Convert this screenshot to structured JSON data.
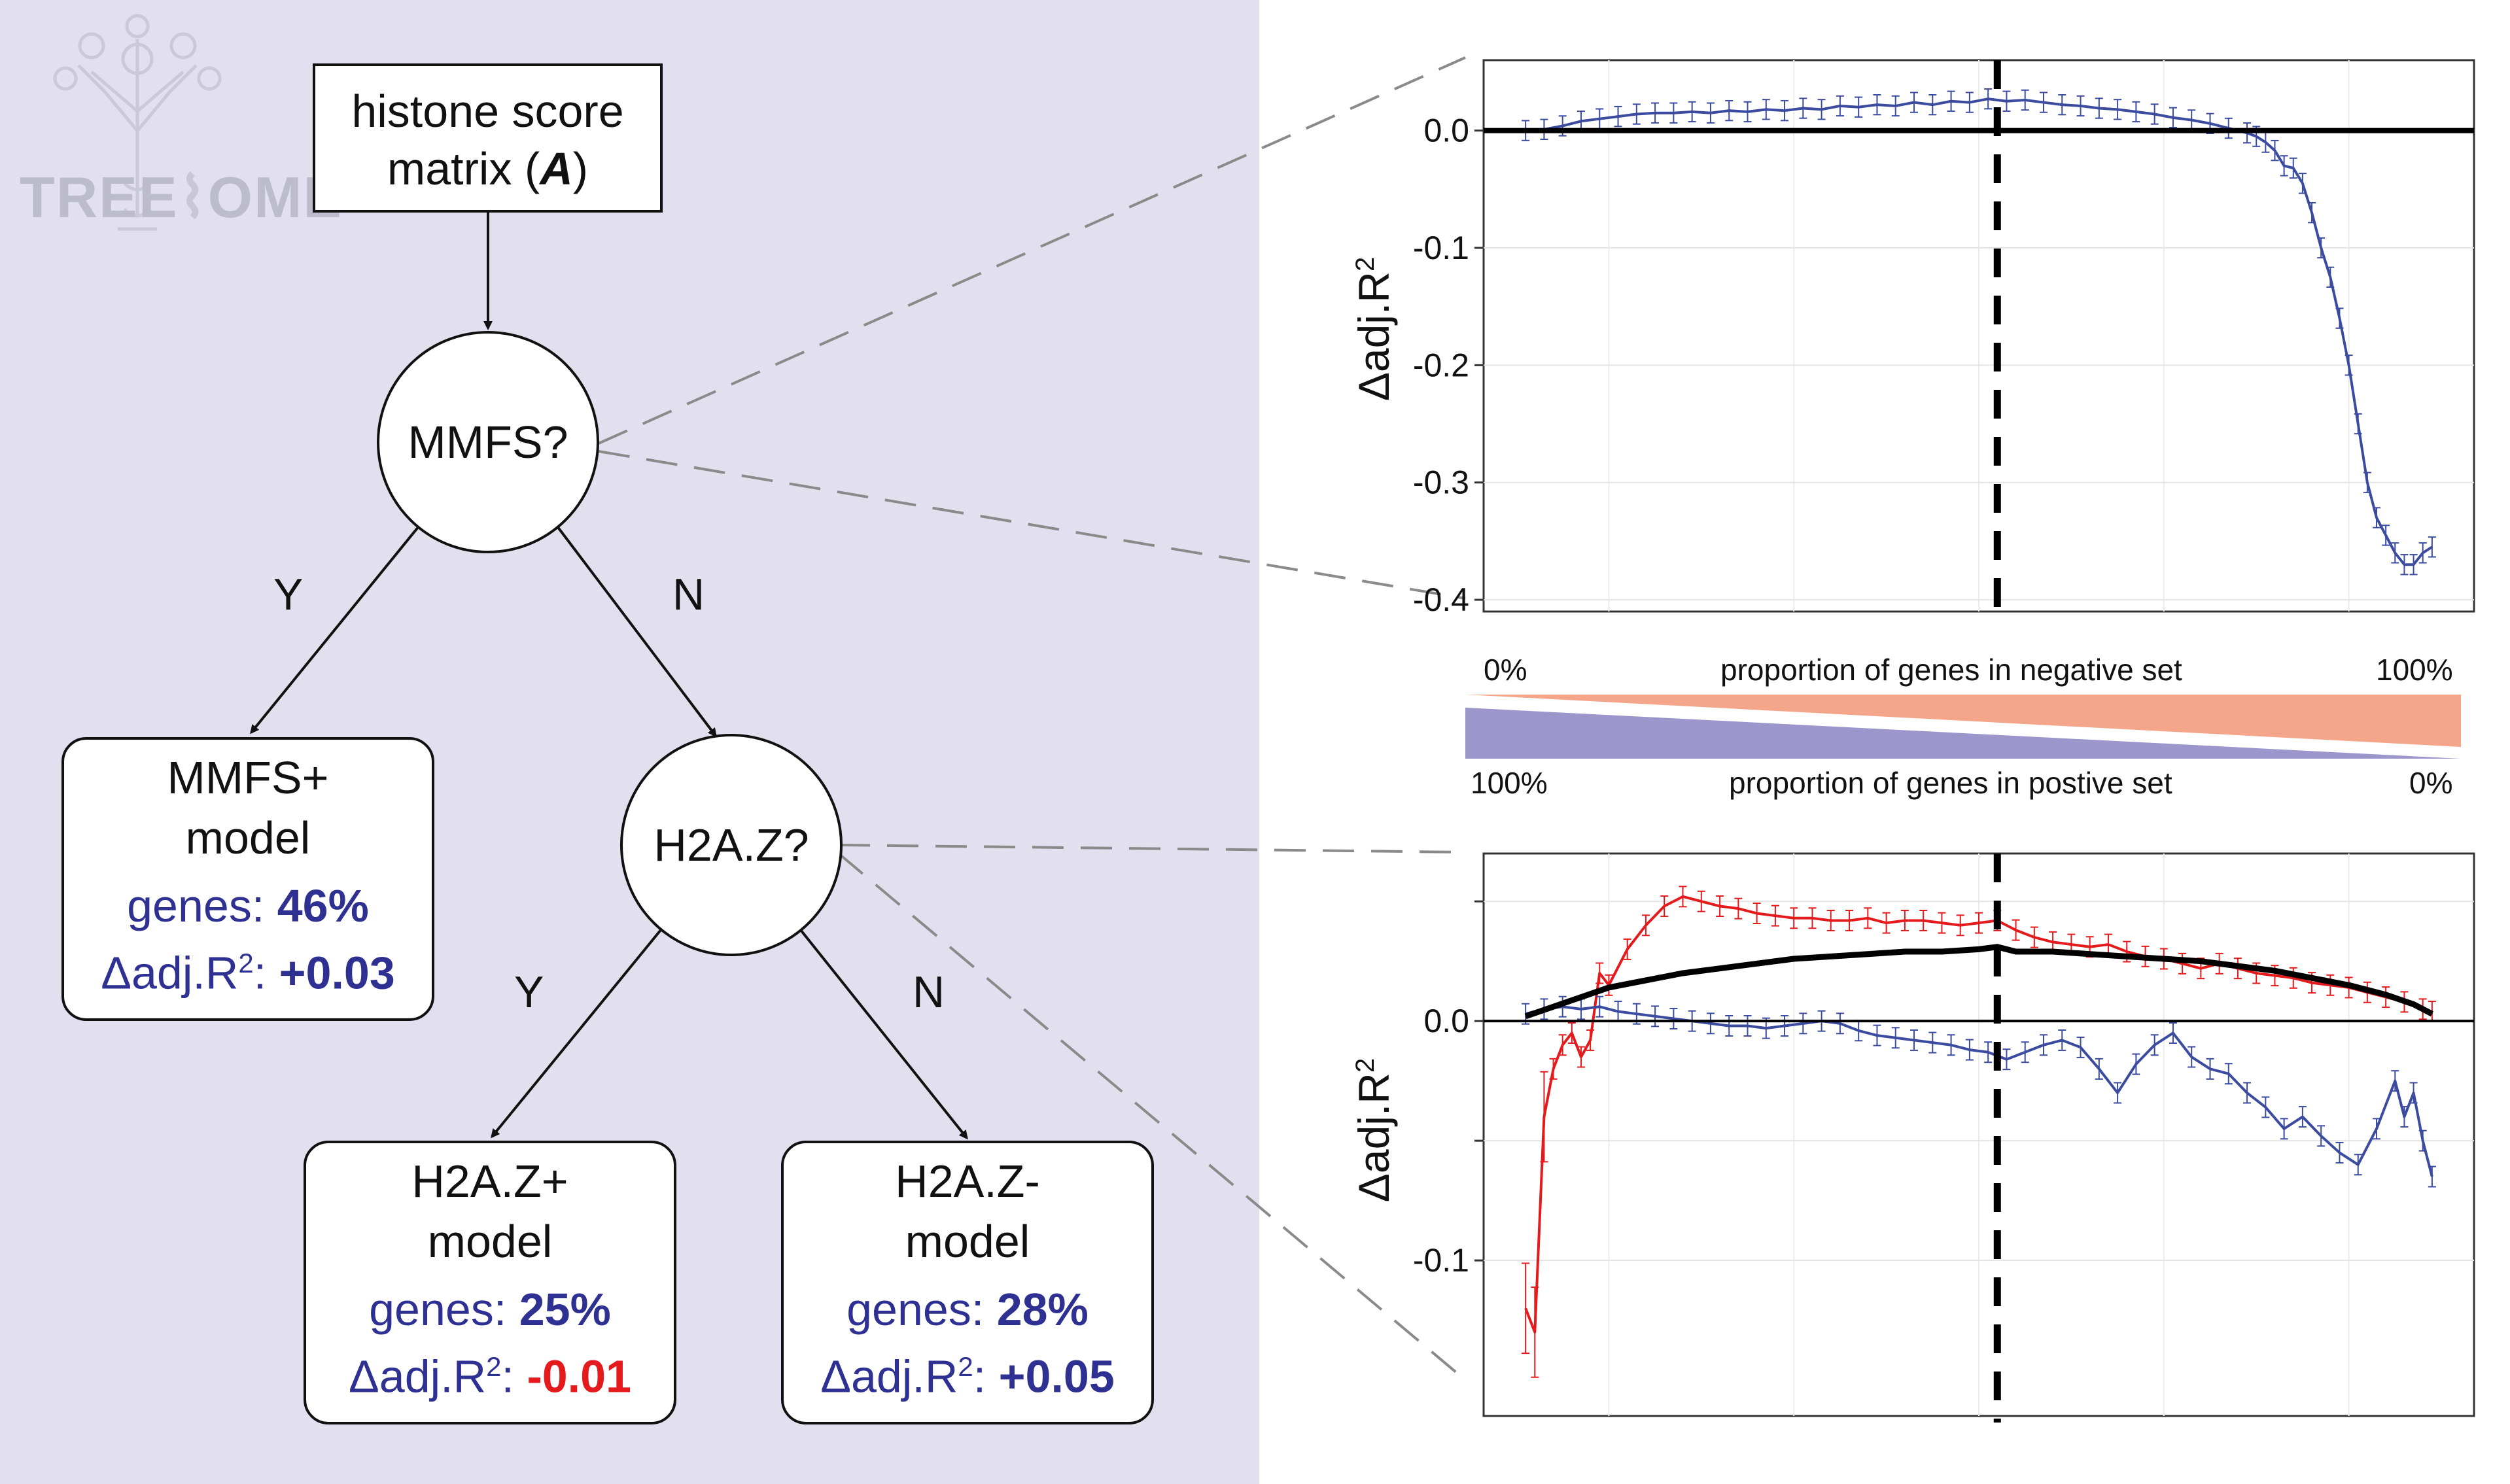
{
  "logo": {
    "text": "TREE",
    "text2": "OME"
  },
  "flow": {
    "root": {
      "line1": "histone score",
      "line2_prefix": "matrix (",
      "line2_var": "A",
      "line2_suffix": ")"
    },
    "node1": "MMFS?",
    "node2": "H2A.Z?",
    "edge_y1": "Y",
    "edge_n1": "N",
    "edge_y2": "Y",
    "edge_n2": "N",
    "model1": {
      "line1": "MMFS+",
      "line2": "model",
      "genes_label": "genes:",
      "genes_value": "46%",
      "delta_label": "Δadj.R",
      "delta_sup": "2",
      "delta_colon": ":",
      "delta_value": "+0.03"
    },
    "model2": {
      "line1": "H2A.Z+",
      "line2": "model",
      "genes_label": "genes:",
      "genes_value": "25%",
      "delta_label": "Δadj.R",
      "delta_sup": "2",
      "delta_colon": ":",
      "delta_value": "-0.01"
    },
    "model3": {
      "line1": "H2A.Z-",
      "line2": "model",
      "genes_label": "genes:",
      "genes_value": "28%",
      "delta_label": "Δadj.R",
      "delta_sup": "2",
      "delta_colon": ":",
      "delta_value": "+0.05"
    }
  },
  "scale": {
    "neg_left": "0%",
    "neg_label": "proportion of genes in negative set",
    "neg_right": "100%",
    "pos_left": "100%",
    "pos_label": "proportion of genes in postive set",
    "pos_right": "0%",
    "neg_color": "#f4a58a",
    "pos_color": "#9b96cc"
  },
  "colors": {
    "blue": "#3b4ba0",
    "red": "#e41a1c",
    "black": "#000000",
    "panel": "#e2e0ee"
  },
  "chart_data": [
    {
      "type": "line",
      "title": "",
      "ylabel": "Δadj.R",
      "ylabel_sup": "2",
      "ylim": [
        -0.41,
        0.06
      ],
      "xlim": [
        0,
        100
      ],
      "yticks": [
        {
          "value": 0.0,
          "label": "0.0"
        },
        {
          "value": -0.1,
          "label": "-0.1"
        },
        {
          "value": -0.2,
          "label": "-0.2"
        },
        {
          "value": -0.3,
          "label": "-0.3"
        },
        {
          "value": -0.4,
          "label": "-0.4"
        }
      ],
      "hline": 0.0,
      "vline": 52,
      "series": [
        {
          "name": "blue",
          "x": [
            1,
            3,
            5,
            7,
            9,
            11,
            13,
            15,
            17,
            19,
            21,
            23,
            25,
            27,
            29,
            31,
            33,
            35,
            37,
            39,
            41,
            43,
            45,
            47,
            49,
            51,
            53,
            55,
            57,
            59,
            61,
            63,
            65,
            67,
            69,
            71,
            73,
            75,
            77,
            79,
            80,
            81,
            82,
            83,
            84,
            85,
            86,
            87,
            88,
            89,
            90,
            91,
            92,
            93,
            94,
            95,
            96,
            97,
            98,
            99
          ],
          "y": [
            0.0,
            0.001,
            0.004,
            0.008,
            0.01,
            0.012,
            0.014,
            0.015,
            0.015,
            0.016,
            0.015,
            0.017,
            0.016,
            0.018,
            0.017,
            0.019,
            0.018,
            0.021,
            0.02,
            0.022,
            0.021,
            0.024,
            0.022,
            0.025,
            0.024,
            0.027,
            0.025,
            0.026,
            0.024,
            0.022,
            0.021,
            0.019,
            0.018,
            0.016,
            0.014,
            0.011,
            0.009,
            0.006,
            0.002,
            -0.002,
            -0.005,
            -0.01,
            -0.017,
            -0.03,
            -0.032,
            -0.045,
            -0.07,
            -0.1,
            -0.125,
            -0.16,
            -0.2,
            -0.25,
            -0.3,
            -0.33,
            -0.345,
            -0.36,
            -0.37,
            -0.37,
            -0.36,
            -0.355
          ],
          "color": "#3b4ba0"
        }
      ]
    },
    {
      "type": "line",
      "title": "",
      "ylabel": "Δadj.R",
      "ylabel_sup": "2",
      "ylim": [
        -0.165,
        0.07
      ],
      "xlim": [
        0,
        100
      ],
      "yticks": [
        {
          "value": 0.05,
          "label": ""
        },
        {
          "value": 0.0,
          "label": "0.0"
        },
        {
          "value": -0.05,
          "label": ""
        },
        {
          "value": -0.1,
          "label": "-0.1"
        }
      ],
      "hline": 0.0,
      "vline": 52,
      "series": [
        {
          "name": "red",
          "x": [
            1,
            2,
            3,
            4,
            5,
            6,
            7,
            8,
            9,
            10,
            12,
            14,
            16,
            18,
            20,
            22,
            24,
            26,
            28,
            30,
            32,
            34,
            36,
            38,
            40,
            42,
            44,
            46,
            48,
            50,
            52,
            54,
            56,
            58,
            60,
            62,
            64,
            66,
            68,
            70,
            72,
            74,
            76,
            78,
            80,
            82,
            84,
            86,
            88,
            90,
            92,
            94,
            96,
            98,
            99
          ],
          "y": [
            -0.12,
            -0.13,
            -0.04,
            -0.02,
            -0.01,
            -0.005,
            -0.015,
            -0.008,
            0.02,
            0.015,
            0.03,
            0.04,
            0.048,
            0.052,
            0.05,
            0.048,
            0.047,
            0.045,
            0.044,
            0.043,
            0.043,
            0.042,
            0.042,
            0.043,
            0.041,
            0.042,
            0.042,
            0.041,
            0.04,
            0.041,
            0.042,
            0.038,
            0.035,
            0.033,
            0.032,
            0.031,
            0.032,
            0.029,
            0.027,
            0.026,
            0.024,
            0.022,
            0.024,
            0.022,
            0.02,
            0.019,
            0.018,
            0.016,
            0.015,
            0.014,
            0.012,
            0.01,
            0.008,
            0.005,
            0.004
          ],
          "color": "#e41a1c"
        },
        {
          "name": "blue",
          "x": [
            1,
            3,
            5,
            7,
            9,
            11,
            13,
            15,
            17,
            19,
            21,
            23,
            25,
            27,
            29,
            31,
            33,
            35,
            37,
            39,
            41,
            43,
            45,
            47,
            49,
            51,
            53,
            55,
            57,
            59,
            61,
            63,
            65,
            67,
            69,
            71,
            73,
            75,
            77,
            79,
            81,
            83,
            85,
            87,
            89,
            91,
            93,
            95,
            96,
            97,
            98,
            99
          ],
          "y": [
            0.003,
            0.005,
            0.006,
            0.005,
            0.006,
            0.004,
            0.003,
            0.002,
            0.001,
            0.0,
            -0.001,
            -0.002,
            -0.002,
            -0.003,
            -0.002,
            -0.001,
            0.0,
            -0.001,
            -0.004,
            -0.006,
            -0.007,
            -0.008,
            -0.009,
            -0.01,
            -0.012,
            -0.013,
            -0.016,
            -0.013,
            -0.01,
            -0.008,
            -0.011,
            -0.02,
            -0.03,
            -0.018,
            -0.01,
            -0.005,
            -0.015,
            -0.02,
            -0.022,
            -0.03,
            -0.036,
            -0.045,
            -0.04,
            -0.048,
            -0.055,
            -0.06,
            -0.045,
            -0.025,
            -0.04,
            -0.03,
            -0.05,
            -0.065
          ],
          "color": "#3b4ba0"
        },
        {
          "name": "black",
          "x": [
            1,
            4,
            7,
            10,
            14,
            18,
            22,
            26,
            30,
            34,
            38,
            42,
            46,
            50,
            52,
            54,
            58,
            62,
            66,
            70,
            74,
            78,
            82,
            86,
            90,
            94,
            97,
            99
          ],
          "y": [
            0.002,
            0.006,
            0.01,
            0.014,
            0.017,
            0.02,
            0.022,
            0.024,
            0.026,
            0.027,
            0.028,
            0.029,
            0.029,
            0.03,
            0.031,
            0.029,
            0.029,
            0.028,
            0.027,
            0.026,
            0.025,
            0.023,
            0.021,
            0.018,
            0.015,
            0.011,
            0.007,
            0.003
          ],
          "color": "#000000"
        }
      ]
    }
  ]
}
